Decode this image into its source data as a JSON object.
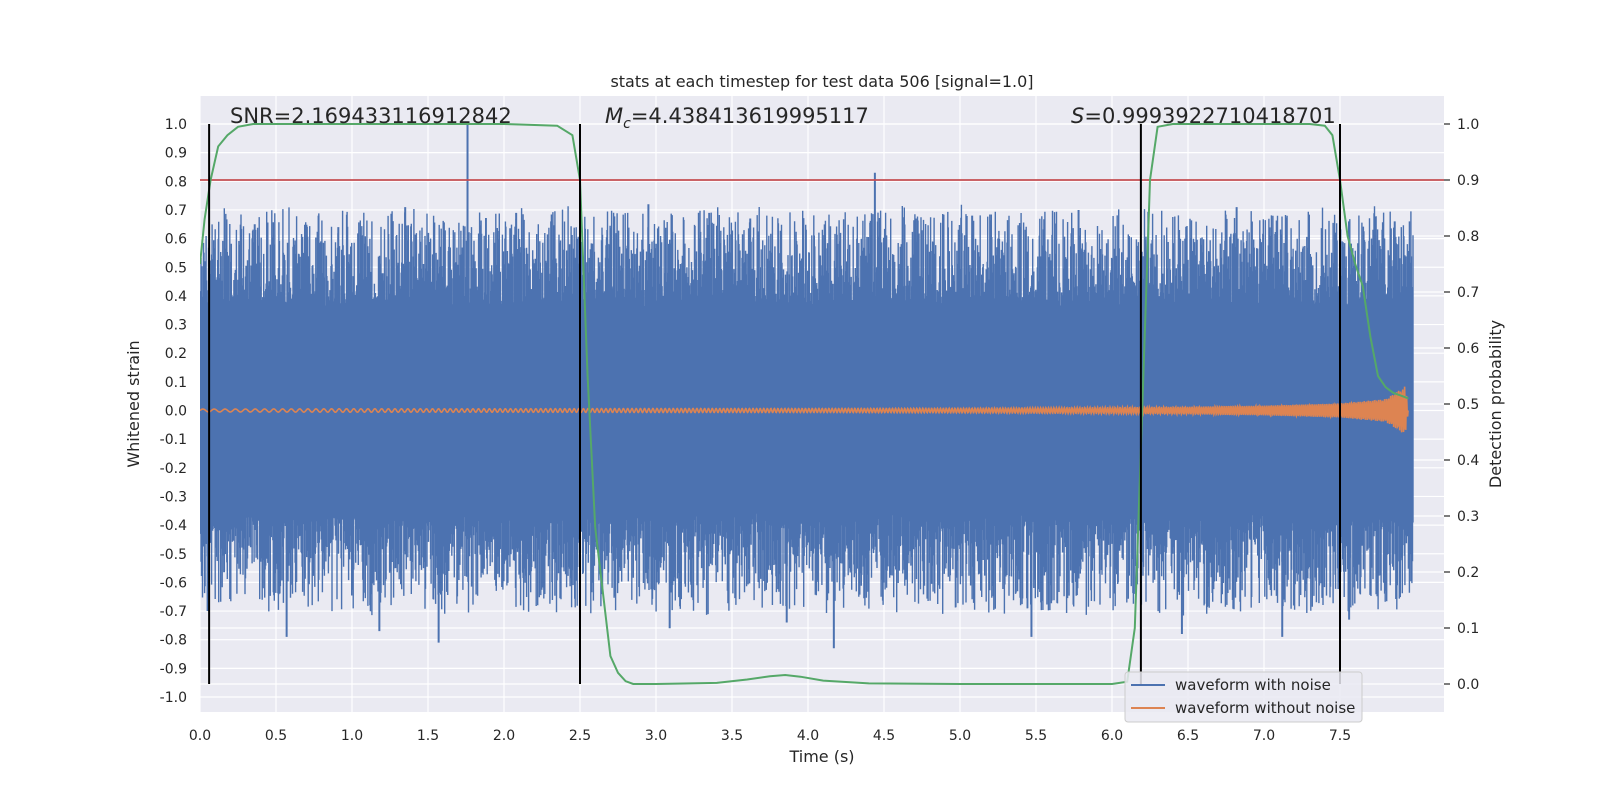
{
  "chart_data": {
    "type": "line",
    "title": "stats at each timestep for test data 506 [signal=1.0]",
    "xlabel": "Time (s)",
    "ylabel": "Whitened strain",
    "y2label": "Detection probability",
    "xlim": [
      0.0,
      8.0
    ],
    "ylim": [
      -1.0,
      1.0
    ],
    "y2lim": [
      -0.04,
      1.04
    ],
    "x_ticks": [
      "0.0",
      "0.5",
      "1.0",
      "1.5",
      "2.0",
      "2.5",
      "3.0",
      "3.5",
      "4.0",
      "4.5",
      "5.0",
      "5.5",
      "6.0",
      "6.5",
      "7.0",
      "7.5"
    ],
    "y_ticks": [
      "1.0",
      "0.9",
      "0.8",
      "0.7",
      "0.6",
      "0.5",
      "0.4",
      "0.3",
      "0.2",
      "0.1",
      "0.0",
      "-0.1",
      "-0.2",
      "-0.3",
      "-0.4",
      "-0.5",
      "-0.6",
      "-0.7",
      "-0.8",
      "-0.9",
      "-1.0"
    ],
    "y2_ticks": [
      "1.0",
      "0.9",
      "0.8",
      "0.7",
      "0.6",
      "0.5",
      "0.4",
      "0.3",
      "0.2",
      "0.1",
      "0.0"
    ],
    "grid": true,
    "legend_position": "lower-right",
    "annotations": {
      "snr": "SNR=2.169433116912842",
      "mc_symbol": "M",
      "mc_sub": "c",
      "mc_value": "=4.438413619995117",
      "s_symbol": "S",
      "s_value": "=0.9993922710418701"
    },
    "threshold": {
      "value": 0.9,
      "axis": "right",
      "color": "#c44e52"
    },
    "vertical_lines": [
      0.06,
      2.5,
      6.19,
      7.5
    ],
    "series": [
      {
        "name": "waveform with noise",
        "color": "#4c72b0",
        "amplitude_band": {
          "outer": 0.68,
          "inner": 0.35
        },
        "spikes_x": [
          0.05,
          0.36,
          0.57,
          0.78,
          0.91,
          1.18,
          1.35,
          1.57,
          1.76,
          2.08,
          2.31,
          2.95,
          3.09,
          3.35,
          3.62,
          3.86,
          4.17,
          4.44,
          4.71,
          5.08,
          5.47,
          5.78,
          6.46,
          6.82,
          7.12,
          7.56,
          7.86
        ],
        "spikes_y": [
          -0.7,
          0.65,
          -0.79,
          0.68,
          0.64,
          -0.77,
          0.71,
          -0.81,
          1.0,
          0.69,
          0.66,
          0.72,
          -0.76,
          0.69,
          0.67,
          -0.74,
          -0.83,
          0.83,
          0.67,
          0.68,
          -0.79,
          0.7,
          -0.78,
          0.71,
          -0.79,
          -0.73,
          0.66
        ]
      },
      {
        "name": "waveform without noise",
        "color": "#dd8452",
        "x": [
          0.0,
          1.0,
          2.0,
          3.0,
          4.0,
          5.0,
          6.0,
          6.5,
          7.0,
          7.5,
          7.8,
          7.93,
          7.95
        ],
        "amplitude": [
          0.005,
          0.006,
          0.006,
          0.007,
          0.007,
          0.008,
          0.011,
          0.013,
          0.017,
          0.025,
          0.04,
          0.085,
          0.0
        ]
      },
      {
        "name": "detection probability",
        "axis": "right",
        "color": "#55a868",
        "x": [
          0.0,
          0.03,
          0.07,
          0.12,
          0.18,
          0.25,
          0.35,
          0.5,
          1.0,
          2.0,
          2.35,
          2.45,
          2.5,
          2.55,
          2.6,
          2.7,
          2.75,
          2.8,
          2.85,
          3.0,
          3.4,
          3.6,
          3.75,
          3.85,
          3.95,
          4.1,
          4.4,
          5.0,
          6.0,
          6.1,
          6.15,
          6.2,
          6.25,
          6.3,
          6.4,
          6.6,
          7.3,
          7.4,
          7.45,
          7.5,
          7.55,
          7.6,
          7.65,
          7.7,
          7.75,
          7.8,
          7.85,
          7.9,
          7.95
        ],
        "y": [
          0.75,
          0.83,
          0.9,
          0.96,
          0.98,
          0.995,
          1.0,
          1.0,
          1.0,
          1.0,
          0.997,
          0.98,
          0.9,
          0.55,
          0.28,
          0.05,
          0.02,
          0.005,
          0.0,
          0.0,
          0.002,
          0.008,
          0.014,
          0.016,
          0.013,
          0.006,
          0.001,
          0.0,
          0.0,
          0.004,
          0.1,
          0.5,
          0.9,
          0.995,
          1.0,
          1.0,
          1.0,
          0.997,
          0.98,
          0.9,
          0.8,
          0.75,
          0.71,
          0.62,
          0.55,
          0.53,
          0.52,
          0.515,
          0.51
        ]
      }
    ]
  }
}
